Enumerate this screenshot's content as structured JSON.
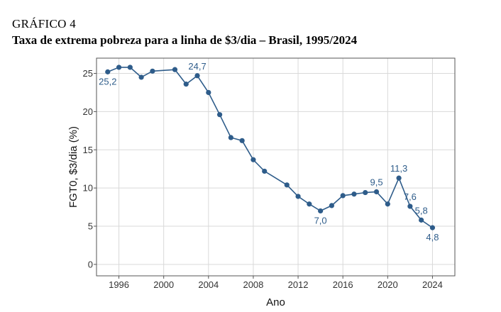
{
  "header": {
    "kicker": "GRÁFICO 4",
    "title": "Taxa de extrema pobreza para a linha de $3/dia – Brasil, 1995/2024"
  },
  "colors": {
    "series": "#2e5c8a",
    "grid": "#d9d9d9",
    "frame": "#555555",
    "label": "#2e5c8a"
  },
  "chart_data": {
    "type": "line",
    "title": "",
    "xlabel": "Ano",
    "ylabel": "FGT0, $3/dia (%)",
    "xlim": [
      1994,
      2026
    ],
    "ylim": [
      -1.5,
      27
    ],
    "x_ticks": [
      1996,
      2000,
      2004,
      2008,
      2012,
      2016,
      2020,
      2024
    ],
    "y_ticks": [
      0,
      5,
      10,
      15,
      20,
      25
    ],
    "grid": true,
    "series": [
      {
        "x": [
          1995,
          1996,
          1997,
          1998,
          1999,
          2001,
          2002,
          2003,
          2004,
          2005,
          2006,
          2007,
          2008,
          2009,
          2011,
          2012,
          2013,
          2014,
          2015,
          2016,
          2017,
          2018,
          2019,
          2020,
          2021,
          2022,
          2023,
          2024
        ],
        "y": [
          25.2,
          25.8,
          25.8,
          24.5,
          25.3,
          25.5,
          23.6,
          24.7,
          22.5,
          19.6,
          16.6,
          16.2,
          13.7,
          12.2,
          10.4,
          8.9,
          7.9,
          7.0,
          7.7,
          9.0,
          9.2,
          9.4,
          9.5,
          7.9,
          11.3,
          7.6,
          5.8,
          4.8
        ]
      }
    ],
    "annotations": [
      {
        "x": 1995,
        "y": 25.2,
        "text": "25,2",
        "pos": "below"
      },
      {
        "x": 2003,
        "y": 24.7,
        "text": "24,7",
        "pos": "above"
      },
      {
        "x": 2014,
        "y": 7.0,
        "text": "7,0",
        "pos": "below"
      },
      {
        "x": 2019,
        "y": 9.5,
        "text": "9,5",
        "pos": "above"
      },
      {
        "x": 2021,
        "y": 11.3,
        "text": "11,3",
        "pos": "above"
      },
      {
        "x": 2022,
        "y": 7.6,
        "text": "7,6",
        "pos": "above"
      },
      {
        "x": 2023,
        "y": 5.8,
        "text": "5,8",
        "pos": "above"
      },
      {
        "x": 2024,
        "y": 4.8,
        "text": "4,8",
        "pos": "below"
      }
    ]
  }
}
